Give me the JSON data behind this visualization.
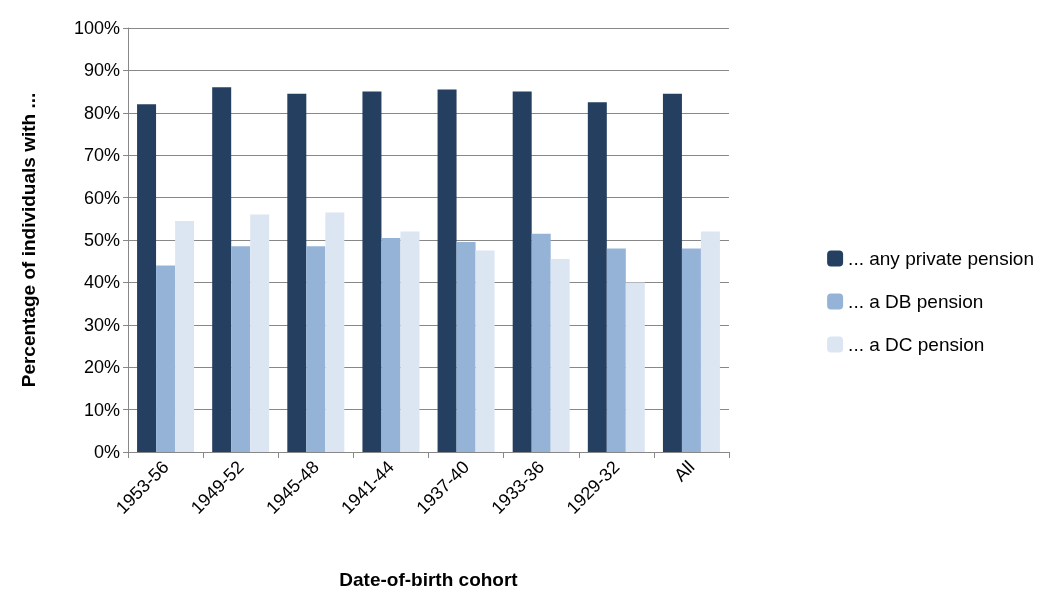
{
  "chart_data": {
    "type": "bar",
    "xlabel": "Date-of-birth cohort",
    "ylabel": "Percentage of individuals with ...",
    "categories": [
      "1953-56",
      "1949-52",
      "1945-48",
      "1941-44",
      "1937-40",
      "1933-36",
      "1929-32",
      "All"
    ],
    "series": [
      {
        "name": "... any private pension",
        "color": "#243f60",
        "values": [
          82,
          86,
          84.5,
          85,
          85.5,
          85,
          82.5,
          84.5
        ]
      },
      {
        "name": "... a DB pension",
        "color": "#95b3d7",
        "values": [
          44,
          48.5,
          48.5,
          50.5,
          49.5,
          51.5,
          48,
          48
        ]
      },
      {
        "name": "... a DC pension",
        "color": "#dce6f2",
        "values": [
          54.5,
          56,
          56.5,
          52,
          47.5,
          45.5,
          40,
          52
        ]
      }
    ],
    "ylim": [
      0,
      100
    ],
    "yticks": [
      {
        "value": 0,
        "label": "0%"
      },
      {
        "value": 10,
        "label": "10%"
      },
      {
        "value": 20,
        "label": "20%"
      },
      {
        "value": 30,
        "label": "30%"
      },
      {
        "value": 40,
        "label": "40%"
      },
      {
        "value": 50,
        "label": "50%"
      },
      {
        "value": 60,
        "label": "60%"
      },
      {
        "value": 70,
        "label": "70%"
      },
      {
        "value": 80,
        "label": "80%"
      },
      {
        "value": 90,
        "label": "90%"
      },
      {
        "value": 100,
        "label": "100%"
      }
    ],
    "grid": "y",
    "legend": "right"
  }
}
